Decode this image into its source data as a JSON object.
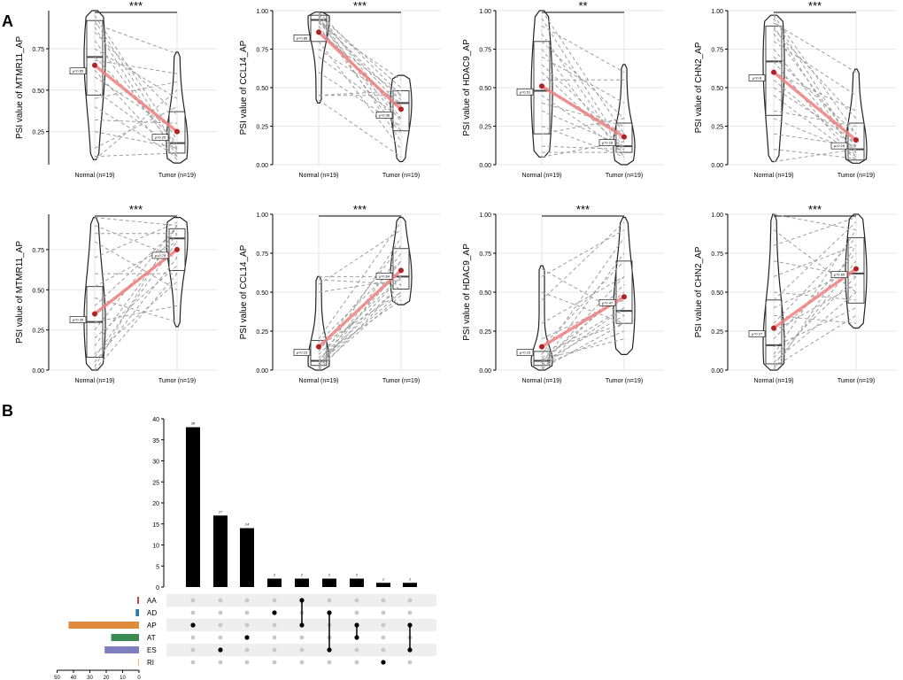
{
  "figure": {
    "panel_a_label": "A",
    "panel_b_label": "B",
    "colors": {
      "mean_line": "#f08080",
      "mean_dot": "#b22222",
      "dashed": "#9e9e9e",
      "grid": "#e6e6e6",
      "AA": "#c0392b",
      "AD": "#2e75b6",
      "AP": "#e08a3c",
      "AT": "#3a8a52",
      "ES": "#7f7fbf",
      "RI": "#e8b46a"
    }
  },
  "chart_data": [
    {
      "type": "violin",
      "title": "MTMR11 row1",
      "ylabel": "PSI value of MTMR11_AP",
      "categories": [
        "Normal (n=19)",
        "Tumor (n=19)"
      ],
      "ylim": [
        0.05,
        0.98
      ],
      "yticks": [
        0.25,
        0.5,
        0.75
      ],
      "ytick_labels": [
        "0.25",
        "0.50",
        "0.75"
      ],
      "significance": "***",
      "means": [
        0.65,
        0.25
      ],
      "mean_labels": [
        "μ=0.65",
        "μ=0.25"
      ],
      "normal": {
        "q1": 0.47,
        "median": 0.7,
        "q3": 0.92,
        "min": 0.08,
        "max": 0.98
      },
      "tumor": {
        "q1": 0.12,
        "median": 0.18,
        "q3": 0.37,
        "min": 0.06,
        "max": 0.73
      },
      "pairs": [
        [
          0.95,
          0.2
        ],
        [
          0.92,
          0.15
        ],
        [
          0.9,
          0.72
        ],
        [
          0.88,
          0.1
        ],
        [
          0.85,
          0.35
        ],
        [
          0.8,
          0.12
        ],
        [
          0.75,
          0.45
        ],
        [
          0.7,
          0.18
        ],
        [
          0.68,
          0.6
        ],
        [
          0.62,
          0.08
        ],
        [
          0.58,
          0.25
        ],
        [
          0.5,
          0.14
        ],
        [
          0.45,
          0.55
        ],
        [
          0.4,
          0.1
        ],
        [
          0.32,
          0.3
        ],
        [
          0.25,
          0.15
        ],
        [
          0.15,
          0.4
        ],
        [
          0.1,
          0.12
        ],
        [
          0.08,
          0.5
        ]
      ]
    },
    {
      "type": "violin",
      "title": "CCL14 row1",
      "ylabel": "PSI value of CCL14_AP",
      "categories": [
        "Normal (n=19)",
        "Tumor (n=19)"
      ],
      "ylim": [
        0.0,
        1.0
      ],
      "yticks": [
        0.0,
        0.25,
        0.5,
        0.75,
        1.0
      ],
      "ytick_labels": [
        "0.00",
        "0.25",
        "0.50",
        "0.75",
        "1.00"
      ],
      "significance": "***",
      "means": [
        0.86,
        0.36
      ],
      "mean_labels": [
        "μ=0.86",
        "μ=0.36"
      ],
      "normal": {
        "q1": 0.8,
        "median": 0.94,
        "q3": 0.97,
        "min": 0.4,
        "max": 0.99
      },
      "tumor": {
        "q1": 0.22,
        "median": 0.4,
        "q3": 0.48,
        "min": 0.02,
        "max": 0.58
      },
      "pairs": [
        [
          0.99,
          0.45
        ],
        [
          0.98,
          0.3
        ],
        [
          0.97,
          0.5
        ],
        [
          0.96,
          0.22
        ],
        [
          0.95,
          0.38
        ],
        [
          0.95,
          0.15
        ],
        [
          0.94,
          0.42
        ],
        [
          0.93,
          0.28
        ],
        [
          0.92,
          0.55
        ],
        [
          0.9,
          0.2
        ],
        [
          0.88,
          0.35
        ],
        [
          0.85,
          0.45
        ],
        [
          0.8,
          0.1
        ],
        [
          0.75,
          0.4
        ],
        [
          0.7,
          0.3
        ],
        [
          0.6,
          0.25
        ],
        [
          0.45,
          0.45
        ],
        [
          0.42,
          0.05
        ],
        [
          0.45,
          0.48
        ]
      ]
    },
    {
      "type": "violin",
      "title": "HDAC9 row1",
      "ylabel": "PSI value of HDAC9_AP",
      "categories": [
        "Normal (n=19)",
        "Tumor (n=19)"
      ],
      "ylim": [
        0.0,
        1.0
      ],
      "yticks": [
        0.0,
        0.25,
        0.5,
        0.75,
        1.0
      ],
      "ytick_labels": [
        "0.00",
        "0.25",
        "0.50",
        "0.75",
        "1.00"
      ],
      "significance": "**",
      "means": [
        0.51,
        0.18
      ],
      "mean_labels": [
        "μ=0.51",
        "μ=0.18"
      ],
      "normal": {
        "q1": 0.2,
        "median": 0.48,
        "q3": 0.8,
        "min": 0.05,
        "max": 1.0
      },
      "tumor": {
        "q1": 0.08,
        "median": 0.12,
        "q3": 0.27,
        "min": 0.0,
        "max": 0.65
      },
      "pairs": [
        [
          1.0,
          0.2
        ],
        [
          0.95,
          0.1
        ],
        [
          0.9,
          0.6
        ],
        [
          0.85,
          0.08
        ],
        [
          0.8,
          0.3
        ],
        [
          0.75,
          0.05
        ],
        [
          0.7,
          0.4
        ],
        [
          0.65,
          0.15
        ],
        [
          0.6,
          0.1
        ],
        [
          0.55,
          0.55
        ],
        [
          0.5,
          0.2
        ],
        [
          0.45,
          0.08
        ],
        [
          0.4,
          0.25
        ],
        [
          0.35,
          0.12
        ],
        [
          0.25,
          0.05
        ],
        [
          0.2,
          0.3
        ],
        [
          0.12,
          0.1
        ],
        [
          0.08,
          0.08
        ],
        [
          0.05,
          0.15
        ]
      ]
    },
    {
      "type": "violin",
      "title": "CHN2 row1",
      "ylabel": "PSI value of CHN2_AP",
      "categories": [
        "Normal (n=19)",
        "Tumor (n=19)"
      ],
      "ylim": [
        0.0,
        1.0
      ],
      "yticks": [
        0.0,
        0.25,
        0.5,
        0.75,
        1.0
      ],
      "ytick_labels": [
        "0.00",
        "0.25",
        "0.50",
        "0.75",
        "1.00"
      ],
      "significance": "***",
      "means": [
        0.6,
        0.16
      ],
      "mean_labels": [
        "μ=0.6",
        "μ=0.16"
      ],
      "normal": {
        "q1": 0.32,
        "median": 0.67,
        "q3": 0.9,
        "min": 0.02,
        "max": 0.97
      },
      "tumor": {
        "q1": 0.03,
        "median": 0.1,
        "q3": 0.27,
        "min": 0.01,
        "max": 0.62
      },
      "pairs": [
        [
          0.97,
          0.2
        ],
        [
          0.95,
          0.1
        ],
        [
          0.92,
          0.6
        ],
        [
          0.9,
          0.05
        ],
        [
          0.88,
          0.3
        ],
        [
          0.85,
          0.12
        ],
        [
          0.8,
          0.45
        ],
        [
          0.75,
          0.08
        ],
        [
          0.7,
          0.2
        ],
        [
          0.67,
          0.02
        ],
        [
          0.6,
          0.35
        ],
        [
          0.55,
          0.1
        ],
        [
          0.5,
          0.15
        ],
        [
          0.45,
          0.05
        ],
        [
          0.35,
          0.25
        ],
        [
          0.3,
          0.08
        ],
        [
          0.2,
          0.12
        ],
        [
          0.1,
          0.04
        ],
        [
          0.02,
          0.1
        ]
      ]
    },
    {
      "type": "violin",
      "title": "MTMR11 row2",
      "ylabel": "PSI value of MTMR11_AP",
      "categories": [
        "Normal (n=19)",
        "Tumor (n=19)"
      ],
      "ylim": [
        0.0,
        0.97
      ],
      "yticks": [
        0.0,
        0.25,
        0.5,
        0.75
      ],
      "ytick_labels": [
        "0.00",
        "0.25",
        "0.50",
        "0.75"
      ],
      "significance": "***",
      "means": [
        0.35,
        0.75
      ],
      "mean_labels": [
        "μ=0.35",
        "μ=0.75"
      ],
      "normal": {
        "q1": 0.08,
        "median": 0.3,
        "q3": 0.52,
        "min": 0.0,
        "max": 0.95
      },
      "tumor": {
        "q1": 0.62,
        "median": 0.82,
        "q3": 0.88,
        "min": 0.27,
        "max": 0.95
      },
      "pairs": [
        [
          0.95,
          0.9
        ],
        [
          0.9,
          0.7
        ],
        [
          0.85,
          0.85
        ],
        [
          0.8,
          0.5
        ],
        [
          0.7,
          0.92
        ],
        [
          0.6,
          0.6
        ],
        [
          0.52,
          0.8
        ],
        [
          0.45,
          0.3
        ],
        [
          0.4,
          0.88
        ],
        [
          0.35,
          0.75
        ],
        [
          0.3,
          0.4
        ],
        [
          0.25,
          0.9
        ],
        [
          0.2,
          0.65
        ],
        [
          0.15,
          0.85
        ],
        [
          0.1,
          0.55
        ],
        [
          0.08,
          0.8
        ],
        [
          0.05,
          0.7
        ],
        [
          0.02,
          0.9
        ],
        [
          0.0,
          0.6
        ]
      ]
    },
    {
      "type": "violin",
      "title": "CCL14 row2",
      "ylabel": "PSI value of CCL14_AP",
      "categories": [
        "Normal (n=19)",
        "Tumor (n=19)"
      ],
      "ylim": [
        0.0,
        1.0
      ],
      "yticks": [
        0.0,
        0.25,
        0.5,
        0.75,
        1.0
      ],
      "ytick_labels": [
        "0.00",
        "0.25",
        "0.50",
        "0.75",
        "1.00"
      ],
      "significance": "***",
      "means": [
        0.15,
        0.64
      ],
      "mean_labels": [
        "μ=0.15",
        "μ=0.64"
      ],
      "normal": {
        "q1": 0.03,
        "median": 0.06,
        "q3": 0.19,
        "min": 0.0,
        "max": 0.6
      },
      "tumor": {
        "q1": 0.52,
        "median": 0.6,
        "q3": 0.78,
        "min": 0.42,
        "max": 0.98
      },
      "pairs": [
        [
          0.6,
          0.6
        ],
        [
          0.58,
          0.55
        ],
        [
          0.55,
          0.9
        ],
        [
          0.5,
          0.58
        ],
        [
          0.2,
          0.95
        ],
        [
          0.18,
          0.7
        ],
        [
          0.15,
          0.5
        ],
        [
          0.12,
          0.8
        ],
        [
          0.1,
          0.6
        ],
        [
          0.08,
          0.45
        ],
        [
          0.06,
          0.65
        ],
        [
          0.05,
          0.55
        ],
        [
          0.05,
          0.85
        ],
        [
          0.04,
          0.5
        ],
        [
          0.03,
          0.6
        ],
        [
          0.02,
          0.75
        ],
        [
          0.02,
          0.48
        ],
        [
          0.01,
          0.7
        ],
        [
          0.0,
          0.55
        ]
      ]
    },
    {
      "type": "violin",
      "title": "HDAC9 row2",
      "ylabel": "PSI value of HDAC9_AP",
      "categories": [
        "Normal (n=19)",
        "Tumor (n=19)"
      ],
      "ylim": [
        0.0,
        1.0
      ],
      "yticks": [
        0.0,
        0.25,
        0.5,
        0.75,
        1.0
      ],
      "ytick_labels": [
        "0.00",
        "0.25",
        "0.50",
        "0.75",
        "1.00"
      ],
      "significance": "***",
      "means": [
        0.15,
        0.47
      ],
      "mean_labels": [
        "μ=0.15",
        "μ=0.47"
      ],
      "normal": {
        "q1": 0.03,
        "median": 0.06,
        "q3": 0.12,
        "min": 0.0,
        "max": 0.67
      },
      "tumor": {
        "q1": 0.3,
        "median": 0.38,
        "q3": 0.7,
        "min": 0.1,
        "max": 0.98
      },
      "pairs": [
        [
          0.65,
          0.35
        ],
        [
          0.6,
          0.9
        ],
        [
          0.5,
          0.3
        ],
        [
          0.45,
          0.95
        ],
        [
          0.3,
          0.6
        ],
        [
          0.2,
          0.45
        ],
        [
          0.15,
          0.7
        ],
        [
          0.12,
          0.3
        ],
        [
          0.1,
          0.85
        ],
        [
          0.08,
          0.4
        ],
        [
          0.07,
          0.2
        ],
        [
          0.06,
          0.5
        ],
        [
          0.05,
          0.35
        ],
        [
          0.04,
          0.75
        ],
        [
          0.03,
          0.25
        ],
        [
          0.03,
          0.6
        ],
        [
          0.02,
          0.4
        ],
        [
          0.01,
          0.3
        ],
        [
          0.0,
          0.55
        ]
      ]
    },
    {
      "type": "violin",
      "title": "CHN2 row2",
      "ylabel": "PSI value of CHN2_AP",
      "categories": [
        "Normal (n=19)",
        "Tumor (n=19)"
      ],
      "ylim": [
        0.0,
        1.0
      ],
      "yticks": [
        0.0,
        0.25,
        0.5,
        0.75,
        1.0
      ],
      "ytick_labels": [
        "0.00",
        "0.25",
        "0.50",
        "0.75",
        "1.00"
      ],
      "significance": "***",
      "means": [
        0.27,
        0.65
      ],
      "mean_labels": [
        "μ=0.27",
        "μ=0.65"
      ],
      "normal": {
        "q1": 0.04,
        "median": 0.16,
        "q3": 0.45,
        "min": 0.0,
        "max": 1.0
      },
      "tumor": {
        "q1": 0.43,
        "median": 0.62,
        "q3": 0.85,
        "min": 0.27,
        "max": 1.0
      },
      "pairs": [
        [
          1.0,
          0.9
        ],
        [
          0.9,
          0.5
        ],
        [
          0.8,
          0.98
        ],
        [
          0.7,
          0.6
        ],
        [
          0.6,
          0.8
        ],
        [
          0.5,
          0.45
        ],
        [
          0.45,
          0.95
        ],
        [
          0.4,
          0.65
        ],
        [
          0.35,
          0.3
        ],
        [
          0.3,
          0.85
        ],
        [
          0.25,
          0.55
        ],
        [
          0.2,
          0.75
        ],
        [
          0.15,
          0.4
        ],
        [
          0.1,
          0.9
        ],
        [
          0.08,
          0.6
        ],
        [
          0.05,
          0.5
        ],
        [
          0.03,
          0.7
        ],
        [
          0.02,
          0.35
        ],
        [
          0.0,
          0.8
        ]
      ]
    },
    {
      "type": "bar",
      "title": "UpSet intersections",
      "ylim": [
        0,
        40
      ],
      "yticks": [
        0,
        5,
        10,
        15,
        20,
        25,
        30,
        35,
        40
      ],
      "ytick_labels": [
        "0",
        "5",
        "10",
        "15",
        "20",
        "25",
        "30",
        "35",
        "40"
      ],
      "values": [
        38,
        17,
        14,
        2,
        2,
        2,
        2,
        1,
        1
      ],
      "value_labels": [
        "38",
        "17",
        "14",
        "2",
        "2",
        "2",
        "2",
        "1",
        "1"
      ],
      "sets": [
        "AA",
        "AD",
        "AP",
        "AT",
        "ES",
        "RI"
      ],
      "memberships": [
        [
          "AP"
        ],
        [
          "ES"
        ],
        [
          "AT"
        ],
        [
          "AD"
        ],
        [
          "AA",
          "AP"
        ],
        [
          "AD",
          "ES"
        ],
        [
          "AP",
          "AT"
        ],
        [
          "RI"
        ],
        [
          "AP",
          "ES"
        ]
      ],
      "set_sizes": [
        1,
        2,
        43,
        17,
        21,
        0.5
      ],
      "set_size_ticks": [
        50,
        40,
        30,
        20,
        10,
        0
      ],
      "set_size_tick_labels": [
        "50",
        "40",
        "30",
        "20",
        "10",
        "0"
      ]
    }
  ]
}
